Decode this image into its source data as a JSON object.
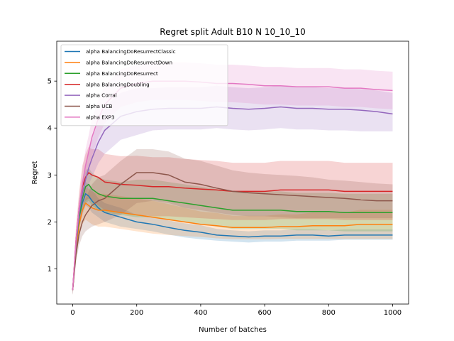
{
  "chart_data": {
    "type": "line",
    "title": "Regret split Adult B10 N 10_10_10",
    "xlabel": "Number of batches",
    "ylabel": "Regret",
    "xlim": [
      -50,
      1050
    ],
    "ylim": [
      0.25,
      5.85
    ],
    "xticks": [
      0,
      200,
      400,
      600,
      800,
      1000
    ],
    "yticks": [
      1,
      2,
      3,
      4,
      5
    ],
    "legend_position": "upper-left",
    "grid": false,
    "shaded_bands": true,
    "series": [
      {
        "name": "alpha BalancingDoResurrectClassic",
        "color": "#1f77b4",
        "x": [
          0,
          10,
          20,
          30,
          40,
          50,
          60,
          80,
          100,
          150,
          200,
          250,
          300,
          350,
          400,
          450,
          500,
          550,
          600,
          650,
          700,
          750,
          800,
          850,
          900,
          950,
          1000
        ],
        "y": [
          0.55,
          1.5,
          2.1,
          2.4,
          2.6,
          2.55,
          2.45,
          2.3,
          2.2,
          2.1,
          2.0,
          1.95,
          1.88,
          1.82,
          1.78,
          1.72,
          1.7,
          1.68,
          1.7,
          1.7,
          1.72,
          1.72,
          1.7,
          1.72,
          1.72,
          1.72,
          1.72
        ],
        "lower": [
          0.45,
          1.3,
          1.9,
          2.15,
          2.35,
          2.3,
          2.2,
          2.1,
          2.0,
          1.9,
          1.85,
          1.8,
          1.73,
          1.67,
          1.63,
          1.6,
          1.58,
          1.56,
          1.58,
          1.58,
          1.6,
          1.6,
          1.6,
          1.62,
          1.62,
          1.62,
          1.62
        ],
        "upper": [
          0.65,
          1.7,
          2.3,
          2.65,
          2.85,
          2.8,
          2.7,
          2.5,
          2.4,
          2.3,
          2.15,
          2.1,
          2.03,
          1.97,
          1.93,
          1.85,
          1.82,
          1.8,
          1.82,
          1.82,
          1.84,
          1.84,
          1.82,
          1.84,
          1.84,
          1.84,
          1.84
        ]
      },
      {
        "name": "alpha BalancingDoResurrectDown",
        "color": "#ff7f0e",
        "x": [
          0,
          10,
          20,
          30,
          40,
          50,
          60,
          80,
          100,
          150,
          200,
          250,
          300,
          350,
          400,
          450,
          500,
          550,
          600,
          650,
          700,
          750,
          800,
          850,
          900,
          950,
          1000
        ],
        "y": [
          0.55,
          1.4,
          1.95,
          2.25,
          2.4,
          2.35,
          2.3,
          2.25,
          2.25,
          2.2,
          2.15,
          2.1,
          2.05,
          2.0,
          1.95,
          1.92,
          1.88,
          1.88,
          1.88,
          1.9,
          1.9,
          1.92,
          1.92,
          1.92,
          1.95,
          1.95,
          1.95
        ],
        "lower": [
          0.45,
          1.2,
          1.7,
          1.95,
          2.05,
          2.0,
          1.95,
          1.9,
          1.9,
          1.85,
          1.8,
          1.75,
          1.72,
          1.7,
          1.68,
          1.65,
          1.63,
          1.63,
          1.63,
          1.64,
          1.64,
          1.64,
          1.64,
          1.64,
          1.64,
          1.64,
          1.64
        ],
        "upper": [
          0.65,
          1.6,
          2.2,
          2.55,
          2.75,
          2.7,
          2.65,
          2.6,
          2.6,
          2.55,
          2.5,
          2.45,
          2.38,
          2.3,
          2.22,
          2.19,
          2.13,
          2.13,
          2.13,
          2.16,
          2.16,
          2.2,
          2.2,
          2.2,
          2.26,
          2.26,
          2.26
        ]
      },
      {
        "name": "alpha BalancingDoResurrect",
        "color": "#2ca02c",
        "x": [
          0,
          10,
          20,
          30,
          40,
          50,
          60,
          80,
          100,
          150,
          200,
          250,
          300,
          350,
          400,
          450,
          500,
          550,
          600,
          650,
          700,
          750,
          800,
          850,
          900,
          950,
          1000
        ],
        "y": [
          0.55,
          1.5,
          2.1,
          2.5,
          2.75,
          2.8,
          2.7,
          2.6,
          2.55,
          2.5,
          2.5,
          2.5,
          2.45,
          2.4,
          2.35,
          2.3,
          2.25,
          2.25,
          2.25,
          2.25,
          2.22,
          2.22,
          2.22,
          2.2,
          2.2,
          2.2,
          2.2
        ],
        "lower": [
          0.45,
          1.3,
          1.85,
          2.2,
          2.4,
          2.45,
          2.35,
          2.25,
          2.2,
          2.15,
          2.1,
          2.1,
          2.05,
          2.0,
          1.95,
          1.9,
          1.85,
          1.85,
          1.85,
          1.85,
          1.82,
          1.82,
          1.82,
          1.8,
          1.8,
          1.8,
          1.8
        ],
        "upper": [
          0.65,
          1.7,
          2.35,
          2.8,
          3.1,
          3.15,
          3.05,
          2.95,
          2.9,
          2.85,
          2.9,
          2.9,
          2.85,
          2.8,
          2.75,
          2.7,
          2.65,
          2.65,
          2.65,
          2.65,
          2.62,
          2.62,
          2.62,
          2.6,
          2.6,
          2.6,
          2.6
        ]
      },
      {
        "name": "alpha BalancingDoubling",
        "color": "#d62728",
        "x": [
          0,
          10,
          20,
          30,
          40,
          50,
          60,
          80,
          100,
          150,
          200,
          250,
          300,
          350,
          400,
          450,
          500,
          550,
          600,
          650,
          700,
          750,
          800,
          850,
          900,
          950,
          1000
        ],
        "y": [
          0.55,
          1.6,
          2.3,
          2.75,
          2.95,
          3.05,
          3.0,
          2.95,
          2.85,
          2.8,
          2.78,
          2.75,
          2.75,
          2.72,
          2.7,
          2.68,
          2.65,
          2.65,
          2.65,
          2.68,
          2.68,
          2.68,
          2.68,
          2.65,
          2.65,
          2.65,
          2.65
        ],
        "lower": [
          0.45,
          1.3,
          1.95,
          2.3,
          2.45,
          2.5,
          2.45,
          2.35,
          2.25,
          2.2,
          2.15,
          2.12,
          2.12,
          2.1,
          2.08,
          2.06,
          2.04,
          2.04,
          2.04,
          2.06,
          2.06,
          2.06,
          2.06,
          2.04,
          2.04,
          2.04,
          2.04
        ],
        "upper": [
          0.65,
          1.9,
          2.65,
          3.2,
          3.45,
          3.6,
          3.55,
          3.55,
          3.45,
          3.4,
          3.41,
          3.38,
          3.38,
          3.34,
          3.32,
          3.3,
          3.26,
          3.26,
          3.26,
          3.3,
          3.3,
          3.3,
          3.3,
          3.26,
          3.26,
          3.26,
          3.26
        ]
      },
      {
        "name": "alpha Corral",
        "color": "#9467bd",
        "x": [
          0,
          10,
          20,
          30,
          40,
          50,
          60,
          80,
          100,
          150,
          200,
          250,
          300,
          350,
          400,
          450,
          500,
          550,
          600,
          650,
          700,
          750,
          800,
          850,
          900,
          950,
          1000
        ],
        "y": [
          0.55,
          1.5,
          2.2,
          2.6,
          2.9,
          3.15,
          3.35,
          3.7,
          3.95,
          4.25,
          4.35,
          4.4,
          4.42,
          4.42,
          4.42,
          4.45,
          4.42,
          4.4,
          4.42,
          4.45,
          4.42,
          4.42,
          4.4,
          4.4,
          4.38,
          4.35,
          4.3
        ],
        "lower": [
          0.45,
          1.3,
          1.95,
          2.3,
          2.55,
          2.8,
          2.95,
          3.25,
          3.45,
          3.75,
          3.85,
          3.95,
          3.97,
          3.97,
          3.97,
          4.0,
          3.97,
          3.95,
          3.97,
          4.0,
          3.97,
          3.97,
          3.95,
          3.95,
          3.93,
          3.93,
          3.93
        ],
        "upper": [
          0.65,
          1.7,
          2.45,
          2.9,
          3.25,
          3.5,
          3.75,
          4.15,
          4.45,
          4.75,
          4.85,
          4.85,
          4.87,
          4.87,
          4.87,
          4.9,
          4.87,
          4.85,
          4.87,
          4.9,
          4.87,
          4.87,
          4.85,
          4.85,
          4.83,
          4.8,
          4.75
        ]
      },
      {
        "name": "alpha UCB",
        "color": "#8c564b",
        "x": [
          0,
          10,
          20,
          30,
          40,
          50,
          60,
          80,
          100,
          150,
          200,
          250,
          300,
          350,
          400,
          450,
          500,
          550,
          600,
          650,
          700,
          750,
          800,
          850,
          900,
          950,
          1000
        ],
        "y": [
          0.55,
          1.3,
          1.75,
          2.0,
          2.15,
          2.25,
          2.35,
          2.45,
          2.5,
          2.8,
          3.05,
          3.05,
          3.0,
          2.85,
          2.8,
          2.72,
          2.65,
          2.62,
          2.6,
          2.58,
          2.56,
          2.54,
          2.52,
          2.5,
          2.47,
          2.45,
          2.45
        ],
        "lower": [
          0.45,
          1.15,
          1.5,
          1.7,
          1.8,
          1.85,
          1.9,
          1.95,
          2.0,
          2.15,
          2.4,
          2.45,
          2.4,
          2.3,
          2.25,
          2.2,
          2.15,
          2.12,
          2.12,
          2.1,
          2.08,
          2.08,
          2.08,
          2.08,
          2.08,
          2.08,
          2.08
        ],
        "upper": [
          0.65,
          1.45,
          2.0,
          2.3,
          2.5,
          2.65,
          2.8,
          2.95,
          3.0,
          3.3,
          3.55,
          3.55,
          3.5,
          3.35,
          3.3,
          3.2,
          3.1,
          3.05,
          3.02,
          3.0,
          2.98,
          2.95,
          2.9,
          2.88,
          2.85,
          2.82,
          2.8
        ]
      },
      {
        "name": "alpha EXP3",
        "color": "#e377c2",
        "x": [
          0,
          10,
          20,
          30,
          40,
          50,
          60,
          80,
          100,
          150,
          200,
          250,
          300,
          350,
          400,
          450,
          500,
          550,
          600,
          650,
          700,
          750,
          800,
          850,
          900,
          950,
          1000
        ],
        "y": [
          0.55,
          1.6,
          2.3,
          2.8,
          3.2,
          3.5,
          3.8,
          4.2,
          4.5,
          4.85,
          4.95,
          5.0,
          5.0,
          5.0,
          4.98,
          4.95,
          4.95,
          4.93,
          4.9,
          4.9,
          4.88,
          4.88,
          4.88,
          4.85,
          4.85,
          4.82,
          4.8
        ],
        "lower": [
          0.45,
          1.4,
          2.05,
          2.5,
          2.85,
          3.15,
          3.4,
          3.8,
          4.1,
          4.45,
          4.55,
          4.6,
          4.6,
          4.6,
          4.58,
          4.55,
          4.55,
          4.53,
          4.5,
          4.5,
          4.48,
          4.48,
          4.48,
          4.45,
          4.45,
          4.42,
          4.4
        ],
        "upper": [
          0.65,
          1.8,
          2.55,
          3.1,
          3.55,
          3.85,
          4.2,
          4.6,
          4.9,
          5.25,
          5.35,
          5.4,
          5.4,
          5.4,
          5.38,
          5.35,
          5.35,
          5.33,
          5.3,
          5.3,
          5.28,
          5.28,
          5.28,
          5.25,
          5.25,
          5.22,
          5.2
        ]
      }
    ]
  }
}
